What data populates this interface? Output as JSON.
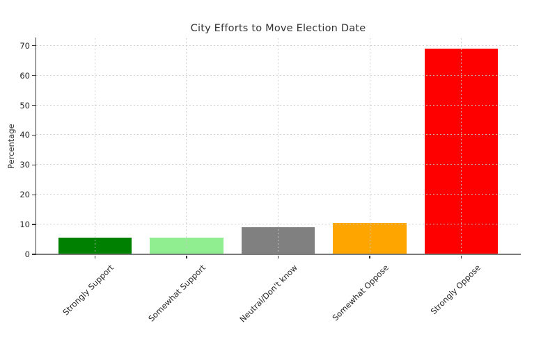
{
  "chart_data": {
    "type": "bar",
    "title": "City Efforts to Move Election Date",
    "xlabel": "",
    "ylabel": "Percentage",
    "categories": [
      "Strongly Support",
      "Somewhat Support",
      "Neutral/Don't know",
      "Somewhat Oppose",
      "Strongly Oppose"
    ],
    "values": [
      5.7,
      5.5,
      9.2,
      10.4,
      69
    ],
    "bar_colors": [
      "#008000",
      "#90ee90",
      "#808080",
      "#ffa500",
      "#ff0000"
    ],
    "yticks": [
      0,
      10,
      20,
      30,
      40,
      50,
      60,
      70
    ],
    "ylim": [
      0,
      72.5
    ],
    "xtick_rotation_deg": 45,
    "grid": {
      "style": "fine-dashed",
      "color": "#c9c9c9",
      "axes": "both",
      "drawn_above_bars": true
    },
    "legend_position": "none",
    "background": "#ffffff"
  }
}
